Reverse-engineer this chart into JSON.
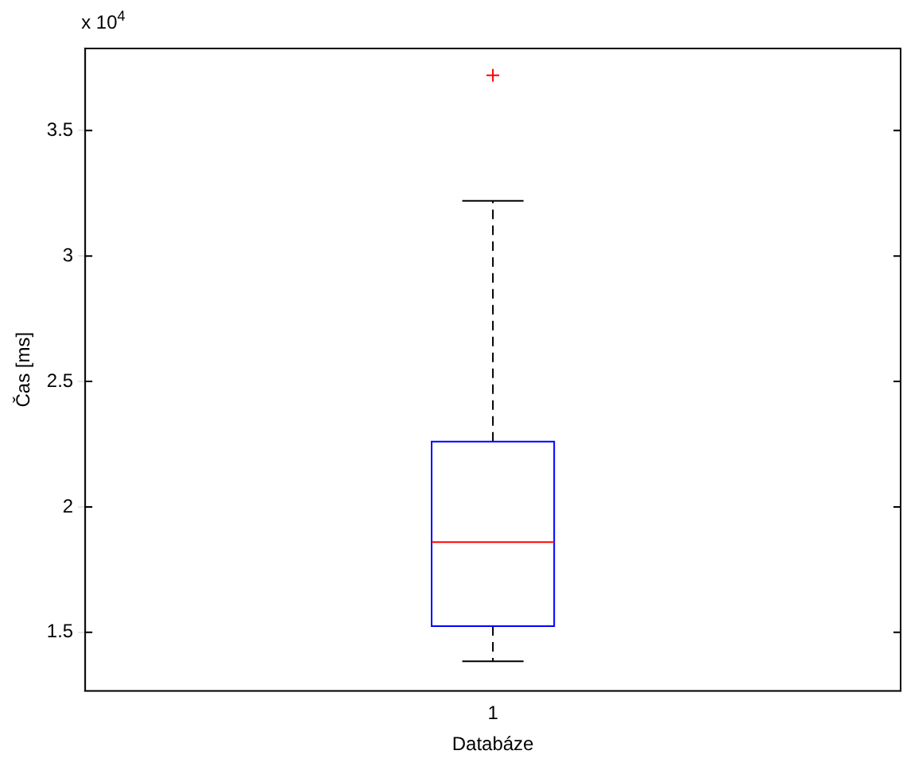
{
  "chart_data": {
    "type": "box",
    "categories": [
      "1"
    ],
    "xlabel": "Databáze",
    "ylabel": "Čas [ms]",
    "color": "#0000ff",
    "boxes": [
      {
        "low": 1.385,
        "q1": 1.525,
        "median": 1.86,
        "q3": 2.26,
        "high": 3.22,
        "outliers": [
          3.72
        ]
      }
    ],
    "ylim": [
      1.264,
      3.83
    ],
    "yticks": [
      1.5,
      2,
      2.5,
      3,
      3.5
    ],
    "grid": false,
    "legend": false,
    "annotations": [
      "x 10$^{4}$"
    ]
  }
}
